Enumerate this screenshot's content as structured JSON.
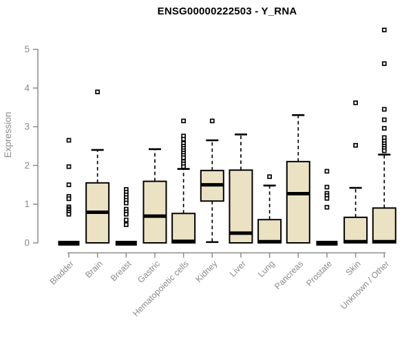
{
  "page": {
    "background": "#ffffff"
  },
  "chart_data": {
    "type": "boxplot",
    "title": "ENSG00000222503 - Y_RNA",
    "ylabel": "Expression",
    "xlabel": "",
    "ylim": [
      0,
      5.6
    ],
    "yticks": [
      0,
      1,
      2,
      3,
      4,
      5
    ],
    "grid": false,
    "legend": "none",
    "categories": [
      "Bladder",
      "Brain",
      "Breast",
      "Gastric",
      "Hematopoietic cells",
      "Kidney",
      "Liver",
      "Lung",
      "Pancreas",
      "Prostate",
      "Skin",
      "Unknown / Other"
    ],
    "series": [
      {
        "name": "Bladder",
        "collapsed": true,
        "q1": 0,
        "median": 0.02,
        "q3": 0.05,
        "whisker_low": 0,
        "whisker_high": 0.05,
        "outliers": [
          2.65,
          1.97,
          1.5,
          1.2,
          1.14,
          0.93,
          0.88,
          0.84,
          0.79,
          0.74
        ]
      },
      {
        "name": "Brain",
        "collapsed": false,
        "q1": 0,
        "median": 0.79,
        "q3": 1.55,
        "whisker_low": 0,
        "whisker_high": 2.4,
        "outliers": [
          3.9
        ]
      },
      {
        "name": "Breast",
        "collapsed": true,
        "q1": 0,
        "median": 0.02,
        "q3": 0.05,
        "whisker_low": 0,
        "whisker_high": 0.05,
        "outliers": [
          1.38,
          1.31,
          1.24,
          1.17,
          1.1,
          1.03,
          0.87,
          0.8,
          0.74,
          0.59,
          0.47
        ]
      },
      {
        "name": "Gastric",
        "collapsed": false,
        "q1": 0,
        "median": 0.69,
        "q3": 1.59,
        "whisker_low": 0,
        "whisker_high": 2.42,
        "outliers": []
      },
      {
        "name": "Hematopoietic cells",
        "collapsed": false,
        "q1": 0,
        "median": 0.04,
        "q3": 0.76,
        "whisker_low": 0,
        "whisker_high": 1.91,
        "outliers": [
          3.15,
          2.76,
          2.68,
          2.57,
          2.5,
          2.44,
          2.38,
          2.32,
          2.26,
          2.2,
          2.1,
          2.04,
          1.97
        ]
      },
      {
        "name": "Kidney",
        "collapsed": false,
        "q1": 1.08,
        "median": 1.5,
        "q3": 1.87,
        "whisker_low": 0.02,
        "whisker_high": 2.65,
        "outliers": [
          3.15
        ]
      },
      {
        "name": "Liver",
        "collapsed": false,
        "q1": 0,
        "median": 0.25,
        "q3": 1.88,
        "whisker_low": 0,
        "whisker_high": 2.8,
        "outliers": []
      },
      {
        "name": "Lung",
        "collapsed": false,
        "q1": 0,
        "median": 0.03,
        "q3": 0.6,
        "whisker_low": 0,
        "whisker_high": 1.48,
        "outliers": [
          1.71
        ]
      },
      {
        "name": "Pancreas",
        "collapsed": false,
        "q1": 0,
        "median": 1.27,
        "q3": 2.1,
        "whisker_low": 0,
        "whisker_high": 3.3,
        "outliers": []
      },
      {
        "name": "Prostate",
        "collapsed": true,
        "q1": 0,
        "median": 0.02,
        "q3": 0.05,
        "whisker_low": 0,
        "whisker_high": 0.05,
        "outliers": [
          1.85,
          1.44,
          1.28,
          1.22,
          1.15,
          0.92
        ]
      },
      {
        "name": "Skin",
        "collapsed": false,
        "q1": 0,
        "median": 0.03,
        "q3": 0.66,
        "whisker_low": 0,
        "whisker_high": 1.42,
        "outliers": [
          3.62,
          2.52
        ]
      },
      {
        "name": "Unknown / Other",
        "collapsed": false,
        "q1": 0,
        "median": 0.03,
        "q3": 0.9,
        "whisker_low": 0,
        "whisker_high": 2.28,
        "outliers": [
          5.5,
          4.63,
          3.45,
          3.18,
          2.96,
          2.72,
          2.63,
          2.56,
          2.5,
          2.44,
          2.38
        ]
      }
    ],
    "colors": {
      "box_fill": "#EAE2C3",
      "box_stroke": "#000000",
      "median": "#000000",
      "whisker": "#000000",
      "outlier_stroke": "#000000",
      "outlier_fill": "#ffffff",
      "axis": "#8a8a8a",
      "tick_label": "#8a8a8a",
      "title": "#000000",
      "background": "#ffffff"
    }
  }
}
